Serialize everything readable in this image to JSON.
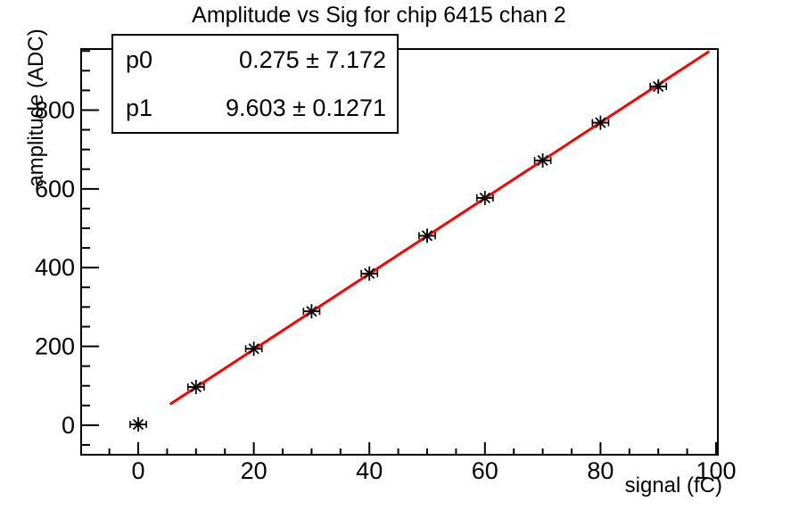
{
  "title": "Amplitude vs Sig for chip 6415 chan 2",
  "stats": {
    "rows": [
      {
        "name": "p0",
        "value": "0.275 ± 7.172"
      },
      {
        "name": "p1",
        "value": "9.603 ± 0.1271"
      }
    ]
  },
  "chart_data": {
    "type": "scatter",
    "title": "Amplitude vs Sig for chip 6415 chan 2",
    "xlabel": "signal (fC)",
    "ylabel": "amplitude (ADC)",
    "xlim": [
      -9.88,
      100.31
    ],
    "ylim": [
      -75,
      955
    ],
    "grid": false,
    "x_ticks": {
      "major": [
        0,
        20,
        40,
        60,
        80,
        100
      ],
      "minor_step": 5
    },
    "y_ticks": {
      "major": [
        0,
        200,
        400,
        600,
        800
      ],
      "minor_step": 50
    },
    "points": {
      "x": [
        0,
        10,
        20,
        30,
        40,
        50,
        60,
        70,
        80,
        90
      ],
      "y": [
        2,
        97,
        194,
        289,
        385,
        481,
        577,
        672,
        768,
        860
      ],
      "x_err": 1.4
    },
    "fit": {
      "label_p0": "p0",
      "p0": 0.275,
      "p0_err": 7.172,
      "label_p1": "p1",
      "p1": 9.603,
      "p1_err": 0.1271,
      "x_range": [
        5.5,
        98.8
      ],
      "color": "#ff0000"
    },
    "marker": "asterisk",
    "colors": {
      "marker": "#000000",
      "fit_line": "#ff0000",
      "frame": "#000000",
      "background": "#ffffff"
    }
  }
}
